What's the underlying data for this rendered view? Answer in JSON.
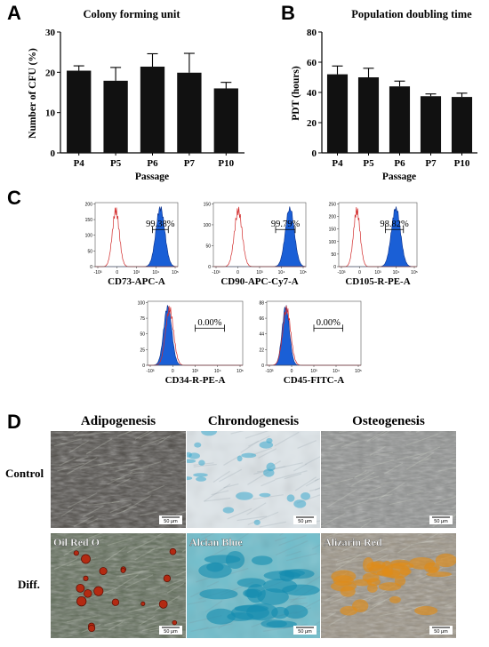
{
  "panels": {
    "A": {
      "letter": "A",
      "title": "Colony forming unit",
      "chart_data": {
        "type": "bar",
        "categories": [
          "P4",
          "P5",
          "P6",
          "P7",
          "P10"
        ],
        "values": [
          20.4,
          17.9,
          21.4,
          19.9,
          16.0
        ],
        "errors": [
          1.2,
          3.3,
          3.2,
          4.8,
          1.5
        ],
        "xlabel": "Passage",
        "ylabel": "Number of CFU (%)",
        "ylim": [
          0,
          30
        ],
        "yticks": [
          0,
          10,
          20,
          30
        ],
        "bar_color": "#111111"
      }
    },
    "B": {
      "letter": "B",
      "title": "Population doubling time",
      "chart_data": {
        "type": "bar",
        "categories": [
          "P4",
          "P5",
          "P6",
          "P7",
          "P10"
        ],
        "values": [
          52.0,
          50.0,
          44.0,
          37.5,
          37.0
        ],
        "errors": [
          5.5,
          6.0,
          3.5,
          1.5,
          2.5
        ],
        "xlabel": "Passage",
        "ylabel": "PDT (hours)",
        "ylim": [
          0,
          80
        ],
        "yticks": [
          0,
          20,
          40,
          60,
          80
        ],
        "bar_color": "#111111"
      }
    },
    "C": {
      "letter": "C",
      "histograms": [
        {
          "marker": "CD73-APC-A",
          "percent": "99.38%",
          "yticks": [
            "0",
            "50",
            "100",
            "150",
            "200"
          ],
          "xticks": [
            "-10³",
            "0",
            "10³",
            "10⁴",
            "10⁵"
          ],
          "neg_peak": 1.3,
          "pos_peak": 4.1,
          "pos_width": 0.28,
          "gate": [
            3.6,
            4.6
          ]
        },
        {
          "marker": "CD90-APC-Cy7-A",
          "percent": "99.79%",
          "yticks": [
            "0",
            "50",
            "100",
            "150"
          ],
          "xticks": [
            "-10³",
            "0",
            "10³",
            "10⁴",
            "10⁵"
          ],
          "neg_peak": 1.4,
          "pos_peak": 4.3,
          "pos_width": 0.25,
          "gate": [
            3.5,
            4.6
          ]
        },
        {
          "marker": "CD105-R-PE-A",
          "percent": "98.82%",
          "yticks": [
            "0",
            "50",
            "100",
            "150",
            "200",
            "250"
          ],
          "xticks": [
            "-10³",
            "0",
            "10³",
            "10⁴",
            "10⁵"
          ],
          "neg_peak": 1.2,
          "pos_peak": 3.8,
          "pos_width": 0.3,
          "gate": [
            3.1,
            4.3
          ]
        },
        {
          "marker": "CD34-R-PE-A",
          "percent": "0.00%",
          "yticks": [
            "0",
            "25",
            "50",
            "75",
            "100"
          ],
          "xticks": [
            "-10³",
            "0",
            "10³",
            "10⁴",
            "10⁵"
          ],
          "neg_peak": 1.2,
          "pos_peak": 1.1,
          "pos_width": 0.22,
          "gate": [
            2.6,
            4.2
          ]
        },
        {
          "marker": "CD45-FITC-A",
          "percent": "0.00%",
          "yticks": [
            "0",
            "22",
            "44",
            "66",
            "88"
          ],
          "xticks": [
            "-10³",
            "0",
            "10³",
            "10⁴",
            "10⁵"
          ],
          "neg_peak": 1.1,
          "pos_peak": 1.05,
          "pos_width": 0.2,
          "gate": [
            2.6,
            4.2
          ]
        }
      ]
    },
    "D": {
      "letter": "D",
      "columns": [
        "Adipogenesis",
        "Chrondogenesis",
        "Osteogenesis"
      ],
      "rows": [
        "Control",
        "Diff."
      ],
      "stains": [
        "Oil Red O",
        "Alcian Blue",
        "Alizarin Red"
      ],
      "scale_bar": "50 μm",
      "colors": {
        "adipo_control": "#4f4c48",
        "chondro_control": "#dfe6ea",
        "osteo_control": "#8f9190",
        "adipo_diff": "#5f6b58",
        "chondro_diff": "#6fbdcb",
        "osteo_diff": "#9a9284",
        "oil_red": "#b32a12",
        "alcian": "#1fa7c4",
        "alizarin": "#d9901f"
      }
    }
  }
}
